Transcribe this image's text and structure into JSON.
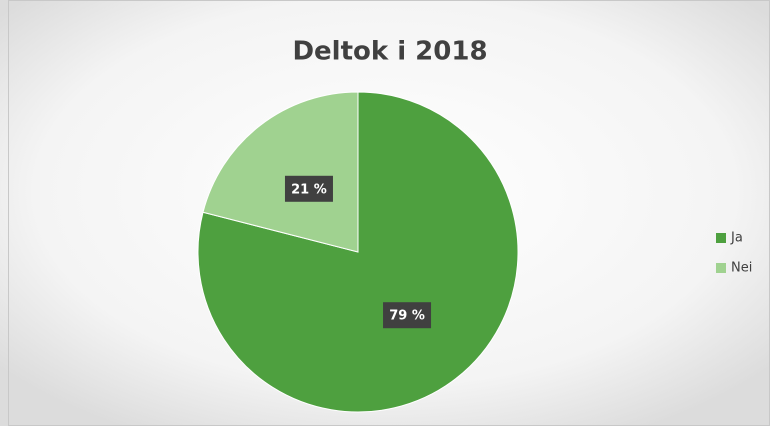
{
  "chart_data": {
    "type": "pie",
    "title": "Deltok i 2018",
    "categories": [
      "Ja",
      "Nei"
    ],
    "values": [
      79,
      21
    ],
    "value_labels": [
      "79 %",
      "21 %"
    ],
    "colors": [
      "#4ea03f",
      "#a0d290"
    ],
    "legend": "right"
  }
}
